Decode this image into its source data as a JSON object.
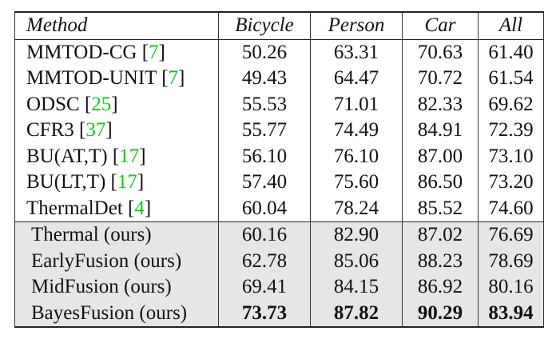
{
  "table": {
    "headers": [
      "Method",
      "Bicycle",
      "Person",
      "Car",
      "All"
    ],
    "rows": [
      {
        "name": "MMTOD-CG",
        "ref": "7",
        "values": [
          "50.26",
          "63.31",
          "70.63",
          "61.40"
        ],
        "ours": false,
        "bold": false
      },
      {
        "name": "MMTOD-UNIT",
        "ref": "7",
        "values": [
          "49.43",
          "64.47",
          "70.72",
          "61.54"
        ],
        "ours": false,
        "bold": false
      },
      {
        "name": "ODSC",
        "ref": "25",
        "values": [
          "55.53",
          "71.01",
          "82.33",
          "69.62"
        ],
        "ours": false,
        "bold": false
      },
      {
        "name": "CFR3",
        "ref": "37",
        "values": [
          "55.77",
          "74.49",
          "84.91",
          "72.39"
        ],
        "ours": false,
        "bold": false
      },
      {
        "name": "BU(AT,T)",
        "ref": "17",
        "values": [
          "56.10",
          "76.10",
          "87.00",
          "73.10"
        ],
        "ours": false,
        "bold": false
      },
      {
        "name": "BU(LT,T)",
        "ref": "17",
        "values": [
          "57.40",
          "75.60",
          "86.50",
          "73.20"
        ],
        "ours": false,
        "bold": false
      },
      {
        "name": "ThermalDet",
        "ref": "4",
        "values": [
          "60.04",
          "78.24",
          "85.52",
          "74.60"
        ],
        "ours": false,
        "bold": false
      },
      {
        "name": "Thermal (ours)",
        "ref": "",
        "values": [
          "60.16",
          "82.90",
          "87.02",
          "76.69"
        ],
        "ours": true,
        "bold": false
      },
      {
        "name": "EarlyFusion (ours)",
        "ref": "",
        "values": [
          "62.78",
          "85.06",
          "88.23",
          "78.69"
        ],
        "ours": true,
        "bold": false
      },
      {
        "name": "MidFusion (ours)",
        "ref": "",
        "values": [
          "69.41",
          "84.15",
          "86.92",
          "80.16"
        ],
        "ours": true,
        "bold": false
      },
      {
        "name": "BayesFusion (ours)",
        "ref": "",
        "values": [
          "73.73",
          "87.82",
          "90.29",
          "83.94"
        ],
        "ours": true,
        "bold": true
      }
    ]
  }
}
